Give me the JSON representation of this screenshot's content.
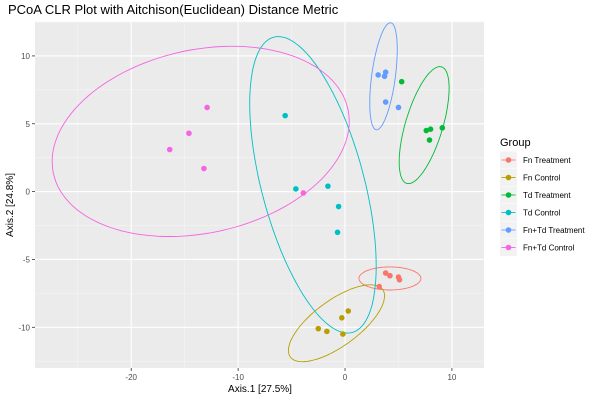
{
  "chart_data": {
    "type": "scatter",
    "title": "PCoA CLR Plot with Aitchison(Euclidean) Distance Metric",
    "xlabel": "Axis.1   [27.5%]",
    "ylabel": "Axis.2   [24.8%]",
    "xlim": [
      -29,
      13
    ],
    "ylim": [
      -13,
      12.5
    ],
    "xticks": [
      -20,
      -10,
      0,
      10
    ],
    "yticks": [
      -10,
      -5,
      0,
      5,
      10
    ],
    "grid": true,
    "legend": {
      "title": "Group",
      "position": "right"
    },
    "series": [
      {
        "name": "Fn Treatment",
        "color": "#F8766D",
        "points": [
          [
            3.8,
            -6.0
          ],
          [
            4.2,
            -6.2
          ],
          [
            5.0,
            -6.3
          ],
          [
            5.1,
            -6.5
          ],
          [
            3.2,
            -7.0
          ]
        ],
        "ellipse": {
          "cx": 4.2,
          "cy": -6.4,
          "rx": 2.9,
          "ry": 0.85,
          "angle": 0
        }
      },
      {
        "name": "Fn Control",
        "color": "#B79F00",
        "points": [
          [
            0.3,
            -8.8
          ],
          [
            -0.3,
            -9.3
          ],
          [
            -2.5,
            -10.1
          ],
          [
            -1.7,
            -10.3
          ],
          [
            -0.2,
            -10.5
          ]
        ],
        "ellipse": {
          "cx": -0.8,
          "cy": -9.7,
          "rx": 5.0,
          "ry": 1.8,
          "angle": 28
        }
      },
      {
        "name": "Td Treatment",
        "color": "#00BA38",
        "points": [
          [
            5.3,
            8.1
          ],
          [
            7.6,
            4.5
          ],
          [
            8.0,
            4.6
          ],
          [
            9.1,
            4.7
          ],
          [
            7.9,
            3.8
          ]
        ],
        "ellipse": {
          "cx": 7.4,
          "cy": 4.9,
          "rx": 1.7,
          "ry": 4.6,
          "angle": -22
        }
      },
      {
        "name": "Td Control",
        "color": "#00BFC4",
        "points": [
          [
            -5.6,
            5.6
          ],
          [
            -4.6,
            0.2
          ],
          [
            -1.6,
            0.4
          ],
          [
            -0.6,
            -1.1
          ],
          [
            -0.7,
            -3.0
          ]
        ],
        "ellipse": {
          "cx": -3.0,
          "cy": 0.5,
          "rx": 4.7,
          "ry": 11.5,
          "angle": 20
        }
      },
      {
        "name": "Fn+Td Treatment",
        "color": "#619CFF",
        "points": [
          [
            3.1,
            8.6
          ],
          [
            3.8,
            8.8
          ],
          [
            3.7,
            8.5
          ],
          [
            3.8,
            6.6
          ],
          [
            5.0,
            6.2
          ]
        ],
        "ellipse": {
          "cx": 3.6,
          "cy": 8.5,
          "rx": 1.1,
          "ry": 4.0,
          "angle": -10
        }
      },
      {
        "name": "Fn+Td Control",
        "color": "#F564E3",
        "points": [
          [
            -12.9,
            6.2
          ],
          [
            -14.6,
            4.3
          ],
          [
            -16.4,
            3.1
          ],
          [
            -13.2,
            1.7
          ],
          [
            -3.9,
            -0.1
          ]
        ],
        "ellipse": {
          "cx": -13.5,
          "cy": 3.7,
          "rx": 14.0,
          "ry": 6.8,
          "angle": 8
        }
      }
    ]
  }
}
